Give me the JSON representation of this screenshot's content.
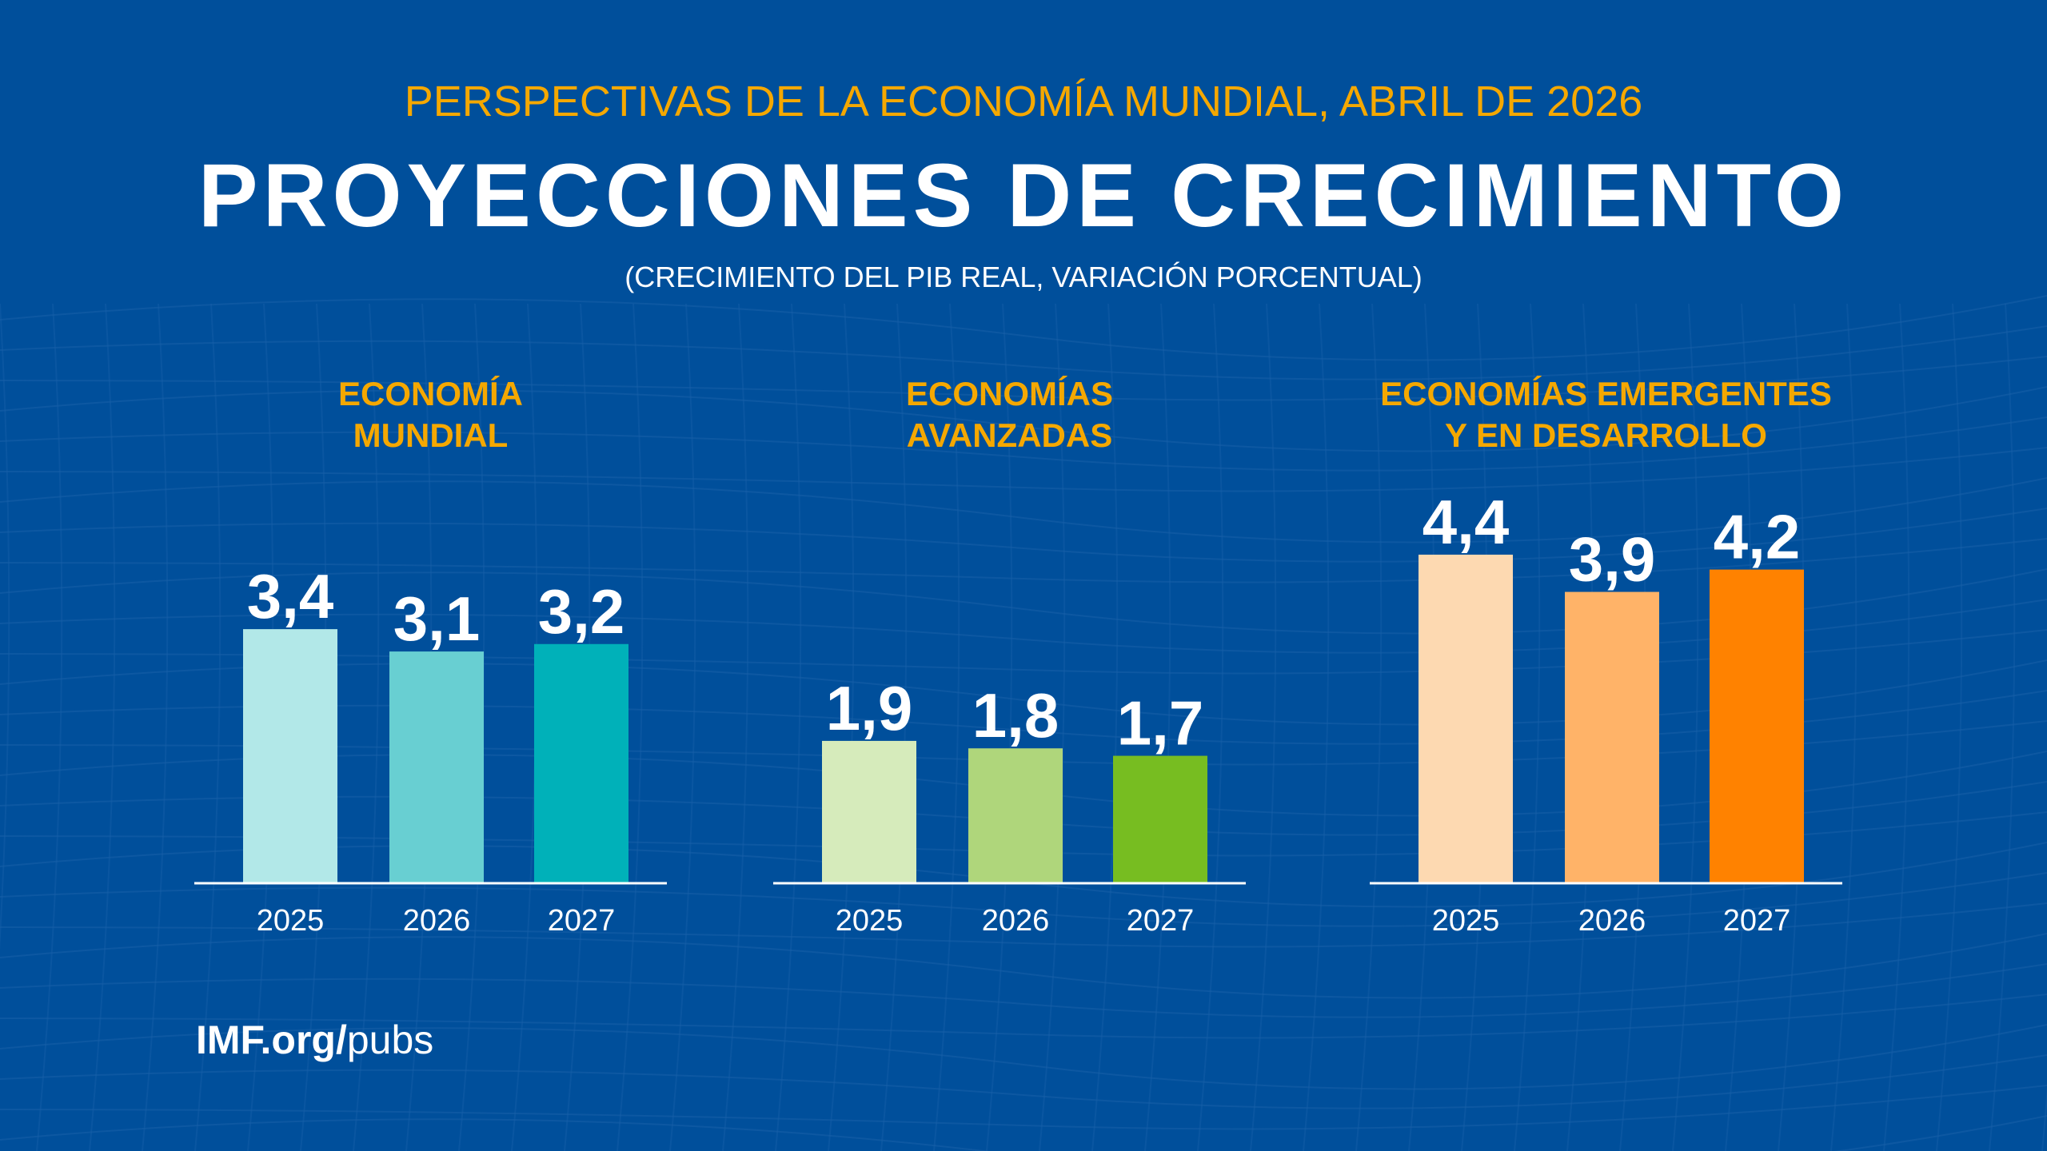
{
  "header": {
    "kicker": "PERSPECTIVAS DE LA ECONOMÍA MUNDIAL, ABRIL DE 2026",
    "title": "PROYECCIONES DE CRECIMIENTO",
    "subtitle": "(CRECIMIENTO DEL PIB REAL, VARIACIÓN PORCENTUAL)"
  },
  "footer": {
    "bold": "IMF.org/",
    "regular": "pubs"
  },
  "colors": {
    "background": "#004f9b",
    "panel_title": "#f5a800",
    "text": "#ffffff"
  },
  "chart_data": [
    {
      "type": "bar",
      "title": [
        "ECONOMÍA",
        "MUNDIAL"
      ],
      "categories": [
        "2025",
        "2026",
        "2027"
      ],
      "values": [
        3.4,
        3.1,
        3.2
      ],
      "labels": [
        "3,4",
        "3,1",
        "3,2"
      ],
      "colors": [
        "#b2e8e8",
        "#68cfd2",
        "#00b1b9"
      ],
      "ylim": [
        0,
        4.4
      ],
      "grid": false
    },
    {
      "type": "bar",
      "title": [
        "ECONOMÍAS",
        "AVANZADAS"
      ],
      "categories": [
        "2025",
        "2026",
        "2027"
      ],
      "values": [
        1.9,
        1.8,
        1.7
      ],
      "labels": [
        "1,9",
        "1,8",
        "1,7"
      ],
      "colors": [
        "#d6ebbb",
        "#afd67b",
        "#77bd21"
      ],
      "ylim": [
        0,
        4.4
      ],
      "grid": false
    },
    {
      "type": "bar",
      "title": [
        "ECONOMÍAS EMERGENTES",
        "Y EN DESARROLLO"
      ],
      "categories": [
        "2025",
        "2026",
        "2027"
      ],
      "values": [
        4.4,
        3.9,
        4.2
      ],
      "labels": [
        "4,4",
        "3,9",
        "4,2"
      ],
      "colors": [
        "#fdd9b1",
        "#ffb368",
        "#ff8200"
      ],
      "ylim": [
        0,
        4.4
      ],
      "grid": false
    }
  ]
}
